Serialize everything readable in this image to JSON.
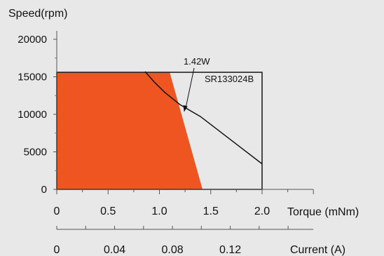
{
  "chart_data": {
    "type": "area",
    "ylabel": "Speed(rpm)",
    "xlabel": "Torque (mNm)",
    "x2label": "Current (A)",
    "xlim": [
      0,
      2.0
    ],
    "ylim": [
      0,
      20000
    ],
    "x_ticks": [
      "0",
      "0.5",
      "1.0",
      "1.5",
      "2.0"
    ],
    "y_ticks": [
      "0",
      "5000",
      "10000",
      "15000",
      "20000"
    ],
    "x2_ticks": [
      {
        "label": "0",
        "value": 0
      },
      {
        "label": "0.04",
        "value": 0.04
      },
      {
        "label": "0.08",
        "value": 0.08
      },
      {
        "label": "0.12",
        "value": 0.12
      }
    ],
    "x2_per_x": 0.071,
    "speed_limit": 15600,
    "operating_region": {
      "x": [
        0,
        1.1,
        1.42,
        0
      ],
      "y": [
        15600,
        15600,
        0,
        0
      ],
      "color": "#ee5520"
    },
    "power_curve": {
      "x": [
        0.86,
        0.95,
        1.05,
        1.2,
        1.4,
        1.6,
        1.8,
        2.0
      ],
      "y": [
        15700,
        14300,
        12950,
        11300,
        9700,
        7600,
        5500,
        3400
      ]
    },
    "annotations": [
      {
        "text": "1.42W",
        "target_x": 1.24,
        "target_y": 10300
      },
      {
        "text": "SR133024B"
      }
    ]
  }
}
